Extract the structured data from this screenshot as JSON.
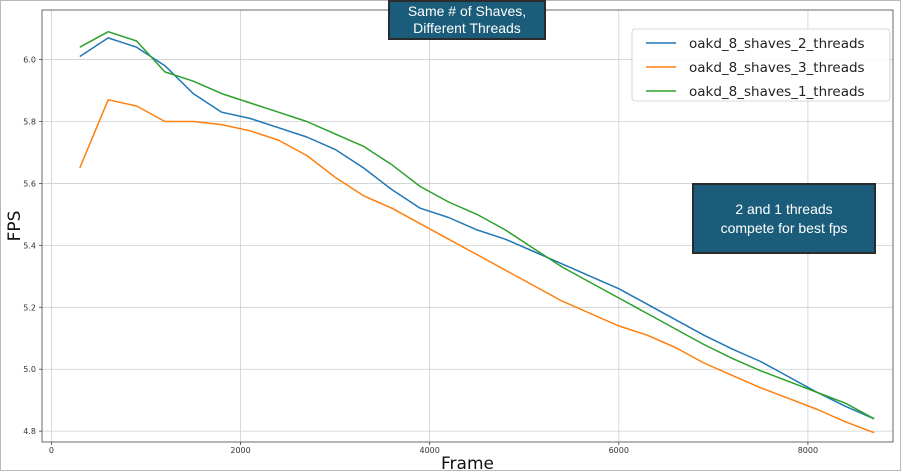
{
  "chart_data": {
    "type": "line",
    "title": "Same # of Shaves,\nDifferent Threads",
    "xlabel": "Frame",
    "ylabel": "FPS",
    "xlim": [
      -100,
      8900
    ],
    "ylim": [
      4.765,
      6.16
    ],
    "xticks": [
      0,
      2000,
      4000,
      6000,
      8000
    ],
    "yticks": [
      4.8,
      5.0,
      5.2,
      5.4,
      5.6,
      5.8,
      6.0
    ],
    "xtick_labels": [
      "0",
      "2000",
      "4000",
      "6000",
      "8000"
    ],
    "ytick_labels": [
      "4.8",
      "5.0",
      "5.2",
      "5.4",
      "5.6",
      "5.8",
      "6.0"
    ],
    "grid": true,
    "legend_position": "top-right",
    "series": [
      {
        "name": "oakd_8_shaves_2_threads",
        "color": "#1f77b4",
        "x": [
          300,
          600,
          900,
          1200,
          1500,
          1800,
          2100,
          2400,
          2700,
          3000,
          3300,
          3600,
          3900,
          4200,
          4500,
          4800,
          5100,
          5400,
          5700,
          6000,
          6300,
          6600,
          6900,
          7200,
          7500,
          7800,
          8100,
          8400,
          8700
        ],
        "values": [
          6.01,
          6.07,
          6.04,
          5.98,
          5.89,
          5.83,
          5.81,
          5.78,
          5.75,
          5.71,
          5.65,
          5.58,
          5.52,
          5.49,
          5.45,
          5.42,
          5.38,
          5.34,
          5.3,
          5.26,
          5.21,
          5.16,
          5.11,
          5.065,
          5.025,
          4.975,
          4.925,
          4.88,
          4.84
        ]
      },
      {
        "name": "oakd_8_shaves_3_threads",
        "color": "#ff7f0e",
        "x": [
          300,
          600,
          900,
          1200,
          1500,
          1800,
          2100,
          2400,
          2700,
          3000,
          3300,
          3600,
          3900,
          4200,
          4500,
          4800,
          5100,
          5400,
          5700,
          6000,
          6300,
          6600,
          6900,
          7200,
          7500,
          7800,
          8100,
          8400,
          8700
        ],
        "values": [
          5.65,
          5.87,
          5.85,
          5.8,
          5.8,
          5.79,
          5.77,
          5.74,
          5.69,
          5.62,
          5.56,
          5.52,
          5.47,
          5.42,
          5.37,
          5.32,
          5.27,
          5.22,
          5.18,
          5.14,
          5.11,
          5.07,
          5.02,
          4.98,
          4.94,
          4.905,
          4.87,
          4.83,
          4.795
        ]
      },
      {
        "name": "oakd_8_shaves_1_threads",
        "color": "#2ca02c",
        "x": [
          300,
          600,
          900,
          1200,
          1500,
          1800,
          2100,
          2400,
          2700,
          3000,
          3300,
          3600,
          3900,
          4200,
          4500,
          4800,
          5100,
          5400,
          5700,
          6000,
          6300,
          6600,
          6900,
          7200,
          7500,
          7800,
          8100,
          8400,
          8700
        ],
        "values": [
          6.04,
          6.09,
          6.06,
          5.96,
          5.93,
          5.89,
          5.86,
          5.83,
          5.8,
          5.76,
          5.72,
          5.66,
          5.59,
          5.54,
          5.5,
          5.45,
          5.39,
          5.33,
          5.28,
          5.23,
          5.18,
          5.13,
          5.08,
          5.035,
          4.995,
          4.96,
          4.925,
          4.89,
          4.84
        ]
      }
    ],
    "annotations": [
      "2 and 1 threads\ncompete for best fps"
    ]
  }
}
